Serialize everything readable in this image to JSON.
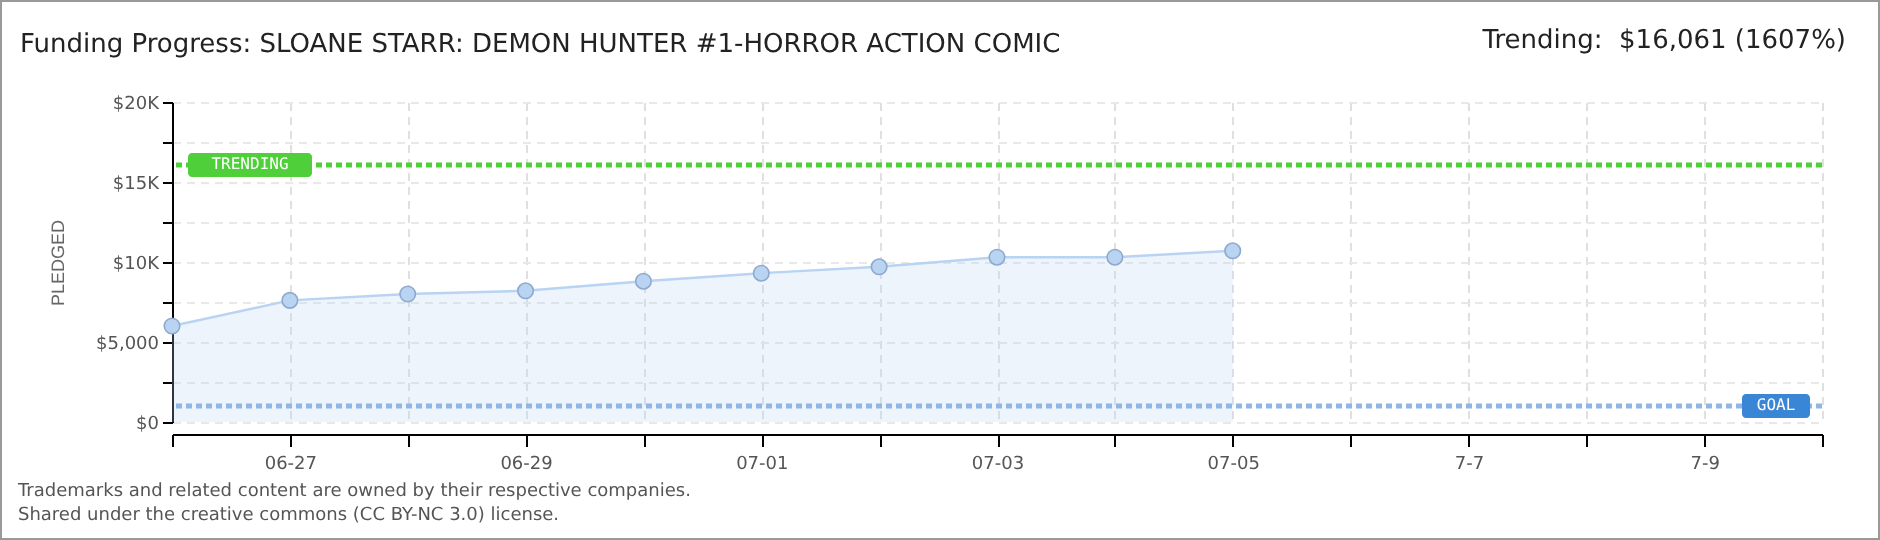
{
  "chart_data": {
    "type": "area",
    "title": "Funding Progress: SLOANE STARR: DEMON HUNTER #1-HORROR ACTION COMIC",
    "ylabel": "PLEDGED",
    "annotations": [
      "Trending:  $16,061 (1607%)",
      "Trademarks and related content are owned by their respective companies.",
      "Shared under the creative commons (CC BY-NC 3.0) license."
    ],
    "x": [
      "--06-26",
      "--06-27",
      "--06-28",
      "--06-29",
      "--06-30",
      "--07-01",
      "--07-02",
      "--07-03",
      "--07-04",
      "--07-05"
    ],
    "series": [
      {
        "color": "#b8d4f2",
        "values": [
          6000,
          7600,
          8000,
          8200,
          8800,
          9300,
          9700,
          10300,
          10300,
          10700
        ]
      }
    ],
    "xlim": [
      "--06-26",
      "--07-10"
    ],
    "xticks": [
      {
        "value": "--06-26",
        "label": null
      },
      {
        "value": "--06-27",
        "label": "06-27"
      },
      {
        "value": "--06-28",
        "label": null
      },
      {
        "value": "--06-29",
        "label": "06-29"
      },
      {
        "value": "--06-30",
        "label": null
      },
      {
        "value": "--07-01",
        "label": "07-01"
      },
      {
        "value": "--07-02",
        "label": null
      },
      {
        "value": "--07-03",
        "label": "07-03"
      },
      {
        "value": "--07-04",
        "label": null
      },
      {
        "value": "--07-05",
        "label": "07-05"
      },
      {
        "value": "--07-06",
        "label": null
      },
      {
        "value": "--07-07",
        "label": "7-7"
      },
      {
        "value": "--07-08",
        "label": null
      },
      {
        "value": "--07-09",
        "label": "7-9"
      },
      {
        "value": "--07-10",
        "label": null
      }
    ],
    "ylim": [
      0,
      20000
    ],
    "yticks": [
      {
        "value": 0,
        "label": "$0"
      },
      {
        "value": 2500,
        "label": null
      },
      {
        "value": 5000,
        "label": "$5,000"
      },
      {
        "value": 7500,
        "label": null
      },
      {
        "value": 10000,
        "label": "$10K"
      },
      {
        "value": 12500,
        "label": null
      },
      {
        "value": 15000,
        "label": "$15K"
      },
      {
        "value": 17500,
        "label": null
      },
      {
        "value": 20000,
        "label": "$20K"
      }
    ],
    "ref_lines": [
      {
        "axis": "y",
        "value": 16061,
        "label": "TRENDING",
        "color": "#4fcf3a",
        "line_style": "dotted"
      },
      {
        "axis": "y",
        "value": 1000,
        "label": "GOAL",
        "color": "#8fb6e6",
        "line_style": "dotted"
      }
    ],
    "grid": true,
    "marker": "circle",
    "line_style": "solid"
  }
}
